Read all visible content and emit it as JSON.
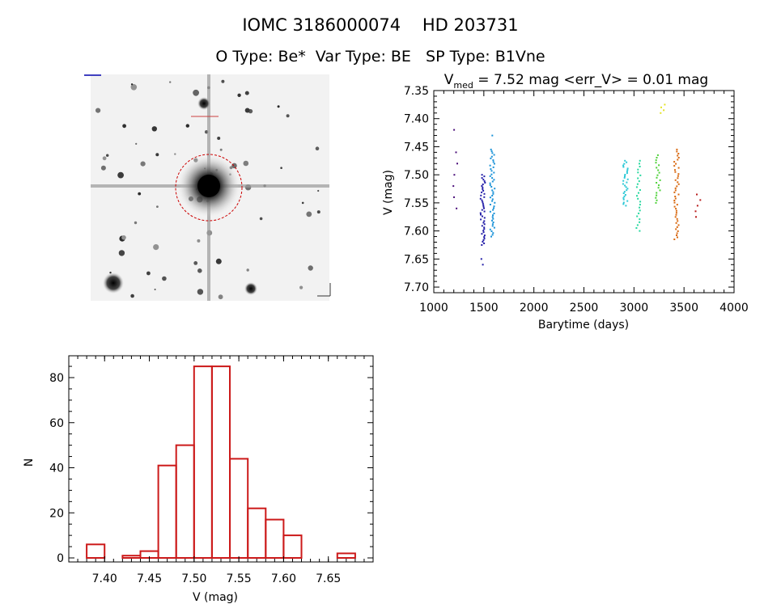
{
  "header": {
    "title": "IOMC 3186000074    HD 203731",
    "subtitle": "O Type: Be*  Var Type: BE   SP Type: B1Vne"
  },
  "colors": {
    "histogram": "#cc1a1a",
    "aperture": "#cc0000",
    "axes": "#000000"
  },
  "image_panel": {
    "kind": "star-field-image",
    "label": "IOMC field image"
  },
  "chart_data": [
    {
      "type": "scatter",
      "title_parts": {
        "prefix": "V",
        "subscript": "med",
        "rest": " = 7.52 mag <err_V> = 0.01 mag"
      },
      "xlabel": "Barytime (days)",
      "ylabel": "V (mag)",
      "xlim": [
        1000,
        4000
      ],
      "ylim": [
        7.71,
        7.35
      ],
      "xticks": [
        "1000",
        "1500",
        "2000",
        "2500",
        "3000",
        "3500",
        "4000"
      ],
      "yticks": [
        "7.35",
        "7.40",
        "7.45",
        "7.50",
        "7.55",
        "7.60",
        "7.65",
        "7.70"
      ],
      "clusters": [
        {
          "x": 1215,
          "ymin": 7.46,
          "ymax": 7.56,
          "n": 6,
          "color": "#4b0f7a"
        },
        {
          "x": 1218,
          "ymin": 7.42,
          "ymax": 7.425,
          "n": 1,
          "color": "#4b0f7a"
        },
        {
          "x": 1490,
          "ymin": 7.5,
          "ymax": 7.625,
          "n": 45,
          "color": "#241fa8"
        },
        {
          "x": 1490,
          "ymin": 7.65,
          "ymax": 7.66,
          "n": 2,
          "color": "#241fa8"
        },
        {
          "x": 1585,
          "ymin": 7.455,
          "ymax": 7.61,
          "n": 50,
          "color": "#1c93d8"
        },
        {
          "x": 1595,
          "ymin": 7.43,
          "ymax": 7.435,
          "n": 1,
          "color": "#1c93d8"
        },
        {
          "x": 2915,
          "ymin": 7.475,
          "ymax": 7.555,
          "n": 30,
          "color": "#2fc9d6"
        },
        {
          "x": 3045,
          "ymin": 7.475,
          "ymax": 7.6,
          "n": 25,
          "color": "#28d8a0"
        },
        {
          "x": 3240,
          "ymin": 7.465,
          "ymax": 7.55,
          "n": 20,
          "color": "#4fd13a"
        },
        {
          "x": 3285,
          "ymin": 7.375,
          "ymax": 7.39,
          "n": 4,
          "color": "#e3e326"
        },
        {
          "x": 3425,
          "ymin": 7.455,
          "ymax": 7.615,
          "n": 45,
          "color": "#d96a12"
        },
        {
          "x": 3640,
          "ymin": 7.535,
          "ymax": 7.575,
          "n": 5,
          "color": "#b81d1d"
        }
      ]
    },
    {
      "type": "bar",
      "xlabel": "V (mag)",
      "ylabel": "N",
      "xlim": [
        7.36,
        7.7
      ],
      "ylim": [
        0,
        90
      ],
      "xticks": [
        "7.40",
        "7.45",
        "7.50",
        "7.55",
        "7.60",
        "7.65"
      ],
      "yticks": [
        "0",
        "20",
        "40",
        "60",
        "80"
      ],
      "bin_width": 0.02,
      "bin_starts": [
        7.38,
        7.4,
        7.42,
        7.44,
        7.46,
        7.48,
        7.5,
        7.52,
        7.54,
        7.56,
        7.58,
        7.6,
        7.62,
        7.64,
        7.66
      ],
      "values": [
        6,
        0,
        1,
        3,
        41,
        50,
        85,
        85,
        44,
        22,
        17,
        10,
        0,
        0,
        2
      ]
    }
  ]
}
